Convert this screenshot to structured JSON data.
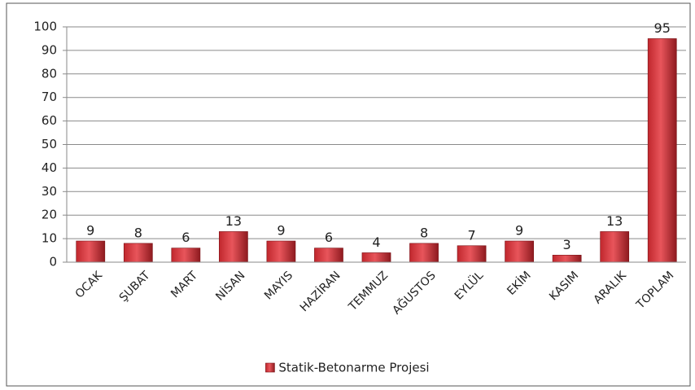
{
  "chart_data": {
    "type": "bar",
    "categories": [
      "OCAK",
      "ŞUBAT",
      "MART",
      "NİSAN",
      "MAYIS",
      "HAZİRAN",
      "TEMMUZ",
      "AĞUSTOS",
      "EYLÜL",
      "EKİM",
      "KASIM",
      "ARALIK",
      "TOPLAM"
    ],
    "series": [
      {
        "name": "Statik-Betonarme Projesi",
        "color": "#c0272d",
        "values": [
          9,
          8,
          6,
          13,
          9,
          6,
          4,
          8,
          7,
          9,
          3,
          13,
          95
        ]
      }
    ],
    "ylim": [
      0,
      100
    ],
    "yticks": [
      0,
      10,
      20,
      30,
      40,
      50,
      60,
      70,
      80,
      90,
      100
    ],
    "grid": true,
    "legend": "bottom"
  }
}
